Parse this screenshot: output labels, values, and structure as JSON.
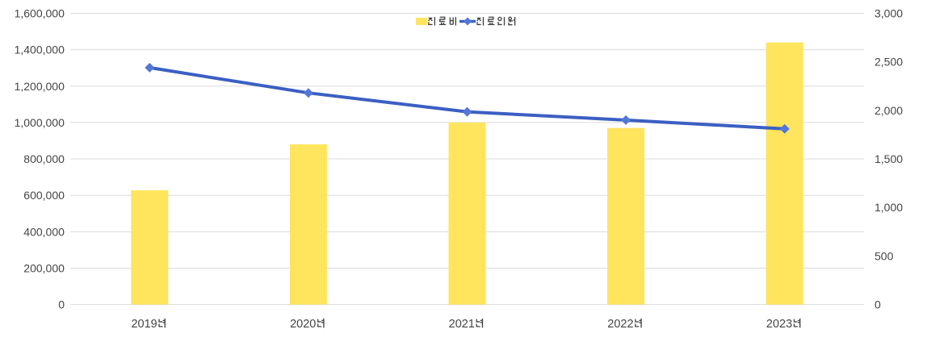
{
  "chart_data": {
    "type": "combo_bar_line",
    "title": "",
    "categories": [
      "2019년",
      "2020년",
      "2021년",
      "2022년",
      "2023년"
    ],
    "series": [
      {
        "name": "진료비",
        "type": "bar",
        "axis": "left",
        "color": "#FFE45E",
        "values": [
          628000,
          880000,
          1000000,
          970000,
          1440000
        ]
      },
      {
        "name": "진료인원",
        "type": "line",
        "axis": "right",
        "color": "#3B5FC3",
        "marker": "diamond",
        "marker_color": "#5377D9",
        "values": [
          2440,
          2180,
          1985,
          1900,
          1810
        ]
      }
    ],
    "left_axis": {
      "min": 0,
      "max": 1600000,
      "step": 200000
    },
    "right_axis": {
      "min": 0,
      "max": 3000,
      "step": 500
    },
    "grid": true,
    "legend_position": "top-center",
    "colors": {
      "gridline": "#DBDBDB",
      "axis_label": "#454545",
      "background": "#FFFFFF"
    }
  }
}
